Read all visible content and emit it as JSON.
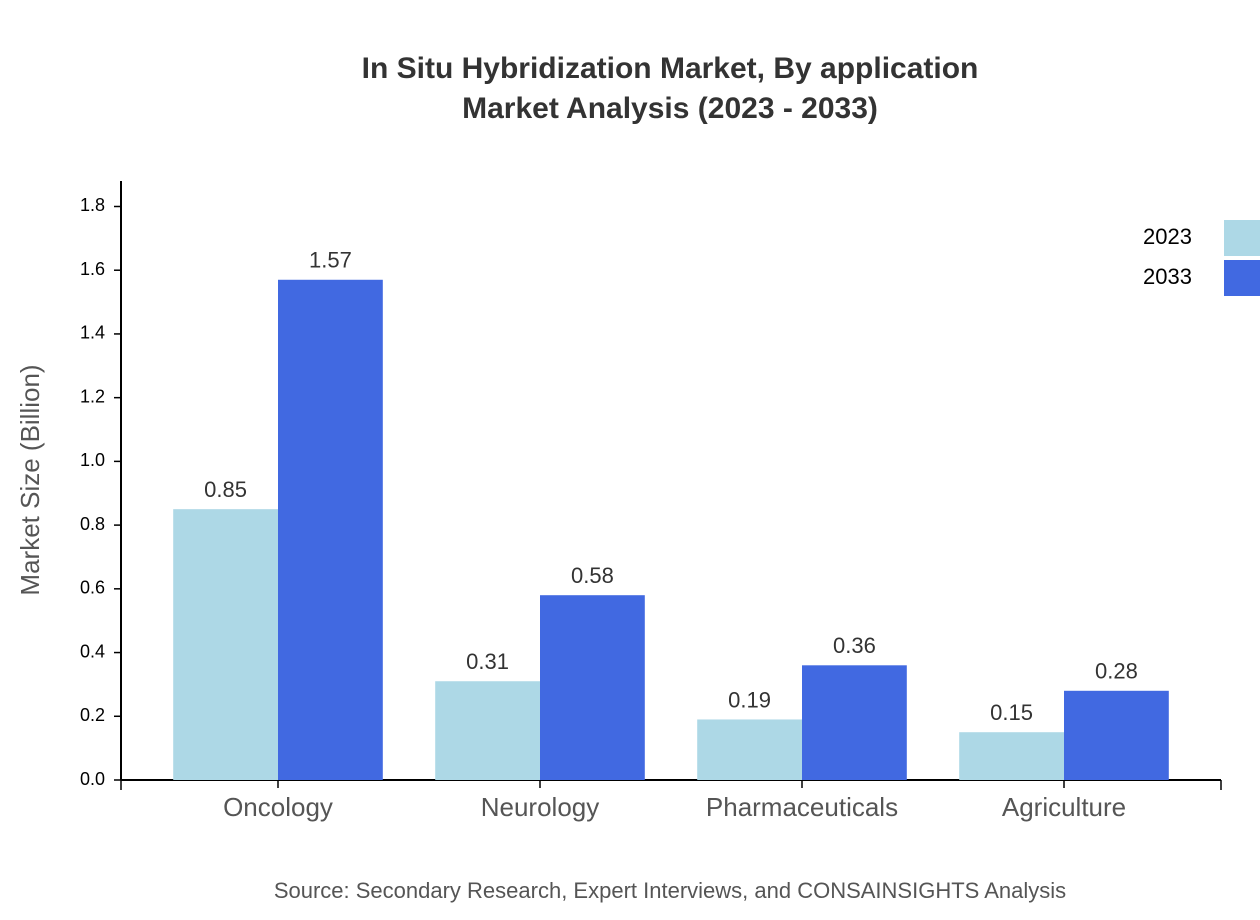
{
  "chart_data": {
    "type": "bar",
    "title": [
      "In Situ Hybridization Market, By application",
      "Market Analysis (2023 - 2033)"
    ],
    "y_label": "Market Size (Billion)",
    "source": "Source: Secondary Research, Expert Interviews, and CONSAINSIGHTS Analysis",
    "categories": [
      "Oncology",
      "Neurology",
      "Pharmaceuticals",
      "Agriculture"
    ],
    "series": [
      {
        "name": "2023",
        "color": "#add8e6",
        "values": [
          0.85,
          0.31,
          0.19,
          0.15
        ]
      },
      {
        "name": "2033",
        "color": "#4169e1",
        "values": [
          1.57,
          0.58,
          0.36,
          0.28
        ]
      }
    ],
    "ylim": [
      0,
      1.88
    ],
    "yticks": [
      {
        "value": 0,
        "label": "0.0"
      },
      0.2,
      0.4,
      0.6,
      0.8,
      {
        "value": 1,
        "label": "1.0"
      },
      1.2,
      1.4,
      1.6,
      1.8
    ],
    "legend": "top-right",
    "grid": false
  }
}
